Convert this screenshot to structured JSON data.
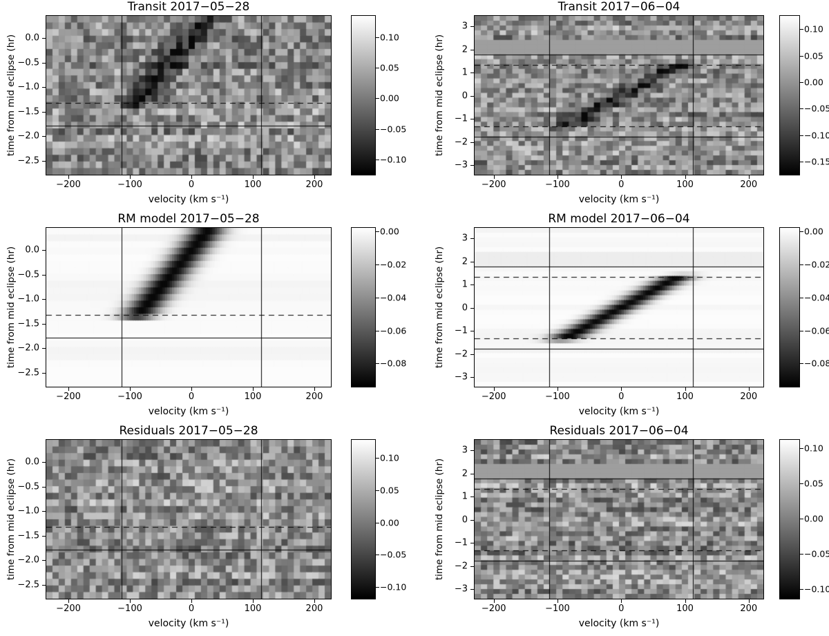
{
  "figure": {
    "background": "#ffffff",
    "text_color": "#000000",
    "line_color": "#000000"
  },
  "chart_data": {
    "type": "heatmap",
    "layout": "3 rows x 2 columns; grayscale spectroscopic time-series maps with individual colorbars",
    "panels": [
      {
        "id": "transit-2017-05-28",
        "kind": "transit",
        "col": "left",
        "title": "Transit 2017−05−28",
        "xlabel": "velocity (km s⁻¹)",
        "ylabel": "time from mid eclipse (hr)",
        "xlim": [
          -236,
          227
        ],
        "ylim": [
          -2.78,
          0.45
        ],
        "xticks": [
          {
            "v": -200,
            "label": "−200"
          },
          {
            "v": -100,
            "label": "−100"
          },
          {
            "v": 0,
            "label": "0"
          },
          {
            "v": 100,
            "label": "100"
          },
          {
            "v": 200,
            "label": "200"
          }
        ],
        "yticks": [
          {
            "v": 0.0,
            "label": "0.0"
          },
          {
            "v": -0.5,
            "label": "−0.5"
          },
          {
            "v": -1.0,
            "label": "−1.0"
          },
          {
            "v": -1.5,
            "label": "−1.5"
          },
          {
            "v": -2.0,
            "label": "−2.0"
          },
          {
            "v": -2.5,
            "label": "−2.5"
          }
        ],
        "vlines": [
          -113,
          113
        ],
        "hlines_solid": [
          -1.78
        ],
        "hlines_dashed": [
          -1.32
        ],
        "gray_bands": [],
        "trail": {
          "t0": -1.32,
          "v0": -86,
          "t1": 0.6,
          "v1": 40,
          "sigma": 27,
          "depth": 0.4,
          "ramp": 0.18
        },
        "grid": {
          "rows": 24,
          "cols": 46
        },
        "seed": 11,
        "noise_amp": 0.46,
        "colorbar": {
          "vmax": 0.135,
          "vmin": -0.125,
          "ticks": [
            {
              "v": 0.1,
              "label": "0.10"
            },
            {
              "v": 0.05,
              "label": "0.05"
            },
            {
              "v": 0.0,
              "label": "0.00"
            },
            {
              "v": -0.05,
              "label": "−0.05"
            },
            {
              "v": -0.1,
              "label": "−0.10"
            }
          ]
        }
      },
      {
        "id": "transit-2017-06-04",
        "kind": "transit",
        "col": "right",
        "title": "Transit 2017−06−04",
        "xlabel": "velocity (km s⁻¹)",
        "ylabel": "time from mid eclipse (hr)",
        "xlim": [
          -230,
          223
        ],
        "ylim": [
          -3.41,
          3.45
        ],
        "xticks": [
          {
            "v": -200,
            "label": "−200"
          },
          {
            "v": -100,
            "label": "−100"
          },
          {
            "v": 0,
            "label": "0"
          },
          {
            "v": 100,
            "label": "100"
          },
          {
            "v": 200,
            "label": "200"
          }
        ],
        "yticks": [
          {
            "v": 3,
            "label": "3"
          },
          {
            "v": 2,
            "label": "2"
          },
          {
            "v": 1,
            "label": "1"
          },
          {
            "v": 0,
            "label": "0"
          },
          {
            "v": -1,
            "label": "−1"
          },
          {
            "v": -2,
            "label": "−2"
          },
          {
            "v": -3,
            "label": "−3"
          }
        ],
        "vlines": [
          -113,
          113
        ],
        "hlines_solid": [
          1.78,
          -1.78
        ],
        "hlines_dashed": [
          1.32,
          -1.32
        ],
        "gray_bands": [
          {
            "t0": 1.8,
            "t1": 2.32,
            "value": 0.62
          }
        ],
        "trail": {
          "t0": -1.32,
          "v0": -88,
          "t1": 1.32,
          "v1": 88,
          "sigma": 25,
          "depth": 0.42,
          "ramp": 0.18
        },
        "grid": {
          "rows": 33,
          "cols": 46
        },
        "seed": 22,
        "noise_amp": 0.44,
        "colorbar": {
          "vmax": 0.125,
          "vmin": -0.175,
          "ticks": [
            {
              "v": 0.1,
              "label": "0.10"
            },
            {
              "v": 0.05,
              "label": "0.05"
            },
            {
              "v": 0.0,
              "label": "0.00"
            },
            {
              "v": -0.05,
              "label": "−0.05"
            },
            {
              "v": -0.1,
              "label": "−0.10"
            },
            {
              "v": -0.15,
              "label": "−0.15"
            }
          ]
        }
      },
      {
        "id": "rm-model-2017-05-28",
        "kind": "model",
        "col": "left",
        "title": "RM model 2017−05−28",
        "xlabel": "velocity (km s⁻¹)",
        "ylabel": "time from mid eclipse (hr)",
        "xlim": [
          -236,
          227
        ],
        "ylim": [
          -2.78,
          0.45
        ],
        "xticks": [
          {
            "v": -200,
            "label": "−200"
          },
          {
            "v": -100,
            "label": "−100"
          },
          {
            "v": 0,
            "label": "0"
          },
          {
            "v": 100,
            "label": "100"
          },
          {
            "v": 200,
            "label": "200"
          }
        ],
        "yticks": [
          {
            "v": 0.0,
            "label": "0.0"
          },
          {
            "v": -0.5,
            "label": "−0.5"
          },
          {
            "v": -1.0,
            "label": "−1.0"
          },
          {
            "v": -1.5,
            "label": "−1.5"
          },
          {
            "v": -2.0,
            "label": "−2.0"
          },
          {
            "v": -2.5,
            "label": "−2.5"
          }
        ],
        "vlines": [
          -113,
          113
        ],
        "hlines_solid": [
          -1.78
        ],
        "hlines_dashed": [
          -1.32
        ],
        "gray_bands": [],
        "trail": {
          "t0": -1.32,
          "v0": -86,
          "t1": 0.6,
          "v1": 40,
          "sigma": 28,
          "depth": 0.95,
          "ramp": 0.18
        },
        "grid": {
          "rows": 24,
          "cols": 120
        },
        "seed": 33,
        "noise_amp": 0,
        "colorbar": {
          "vmax": 0.002,
          "vmin": -0.094,
          "ticks": [
            {
              "v": 0.0,
              "label": "0.00"
            },
            {
              "v": -0.02,
              "label": "−0.02"
            },
            {
              "v": -0.04,
              "label": "−0.04"
            },
            {
              "v": -0.06,
              "label": "−0.06"
            },
            {
              "v": -0.08,
              "label": "−0.08"
            }
          ]
        }
      },
      {
        "id": "rm-model-2017-06-04",
        "kind": "model",
        "col": "right",
        "title": "RM model 2017−06−04",
        "xlabel": "velocity (km s⁻¹)",
        "ylabel": "time from mid eclipse (hr)",
        "xlim": [
          -230,
          223
        ],
        "ylim": [
          -3.41,
          3.45
        ],
        "xticks": [
          {
            "v": -200,
            "label": "−200"
          },
          {
            "v": -100,
            "label": "−100"
          },
          {
            "v": 0,
            "label": "0"
          },
          {
            "v": 100,
            "label": "100"
          },
          {
            "v": 200,
            "label": "200"
          }
        ],
        "yticks": [
          {
            "v": 3,
            "label": "3"
          },
          {
            "v": 2,
            "label": "2"
          },
          {
            "v": 1,
            "label": "1"
          },
          {
            "v": 0,
            "label": "0"
          },
          {
            "v": -1,
            "label": "−1"
          },
          {
            "v": -2,
            "label": "−2"
          },
          {
            "v": -3,
            "label": "−3"
          }
        ],
        "vlines": [
          -113,
          113
        ],
        "hlines_solid": [
          1.78,
          -1.78
        ],
        "hlines_dashed": [
          1.32,
          -1.32
        ],
        "gray_bands": [
          {
            "t0": 1.8,
            "t1": 2.32,
            "value": 0.93
          }
        ],
        "trail": {
          "t0": -1.32,
          "v0": -88,
          "t1": 1.32,
          "v1": 88,
          "sigma": 26,
          "depth": 0.95,
          "ramp": 0.18
        },
        "grid": {
          "rows": 33,
          "cols": 120
        },
        "seed": 44,
        "noise_amp": 0,
        "colorbar": {
          "vmax": 0.002,
          "vmin": -0.094,
          "ticks": [
            {
              "v": 0.0,
              "label": "0.00"
            },
            {
              "v": -0.02,
              "label": "−0.02"
            },
            {
              "v": -0.04,
              "label": "−0.04"
            },
            {
              "v": -0.06,
              "label": "−0.06"
            },
            {
              "v": -0.08,
              "label": "−0.08"
            }
          ]
        }
      },
      {
        "id": "residuals-2017-05-28",
        "kind": "residuals",
        "col": "left",
        "title": "Residuals 2017−05−28",
        "xlabel": "velocity (km s⁻¹)",
        "ylabel": "time from mid eclipse (hr)",
        "xlim": [
          -236,
          227
        ],
        "ylim": [
          -2.78,
          0.45
        ],
        "xticks": [
          {
            "v": -200,
            "label": "−200"
          },
          {
            "v": -100,
            "label": "−100"
          },
          {
            "v": 0,
            "label": "0"
          },
          {
            "v": 100,
            "label": "100"
          },
          {
            "v": 200,
            "label": "200"
          }
        ],
        "yticks": [
          {
            "v": 0.0,
            "label": "0.0"
          },
          {
            "v": -0.5,
            "label": "−0.5"
          },
          {
            "v": -1.0,
            "label": "−1.0"
          },
          {
            "v": -1.5,
            "label": "−1.5"
          },
          {
            "v": -2.0,
            "label": "−2.0"
          },
          {
            "v": -2.5,
            "label": "−2.5"
          }
        ],
        "vlines": [
          -113,
          113
        ],
        "hlines_solid": [
          -1.78
        ],
        "hlines_dashed": [
          -1.32
        ],
        "gray_bands": [],
        "trail": null,
        "grid": {
          "rows": 24,
          "cols": 46
        },
        "seed": 55,
        "noise_amp": 0.46,
        "colorbar": {
          "vmax": 0.128,
          "vmin": -0.118,
          "ticks": [
            {
              "v": 0.1,
              "label": "0.10"
            },
            {
              "v": 0.05,
              "label": "0.05"
            },
            {
              "v": 0.0,
              "label": "0.00"
            },
            {
              "v": -0.05,
              "label": "−0.05"
            },
            {
              "v": -0.1,
              "label": "−0.10"
            }
          ]
        }
      },
      {
        "id": "residuals-2017-06-04",
        "kind": "residuals",
        "col": "right",
        "title": "Residuals 2017−06−04",
        "xlabel": "velocity (km s⁻¹)",
        "ylabel": "time from mid eclipse (hr)",
        "xlim": [
          -230,
          223
        ],
        "ylim": [
          -3.41,
          3.45
        ],
        "xticks": [
          {
            "v": -200,
            "label": "−200"
          },
          {
            "v": -100,
            "label": "−100"
          },
          {
            "v": 0,
            "label": "0"
          },
          {
            "v": 100,
            "label": "100"
          },
          {
            "v": 200,
            "label": "200"
          }
        ],
        "yticks": [
          {
            "v": 3,
            "label": "3"
          },
          {
            "v": 2,
            "label": "2"
          },
          {
            "v": 1,
            "label": "1"
          },
          {
            "v": 0,
            "label": "0"
          },
          {
            "v": -1,
            "label": "−1"
          },
          {
            "v": -2,
            "label": "−2"
          },
          {
            "v": -3,
            "label": "−3"
          }
        ],
        "vlines": [
          -113,
          113
        ],
        "hlines_solid": [
          1.78,
          -1.78
        ],
        "hlines_dashed": [
          1.32,
          -1.32
        ],
        "gray_bands": [
          {
            "t0": 1.8,
            "t1": 2.32,
            "value": 0.62
          }
        ],
        "trail": null,
        "grid": {
          "rows": 33,
          "cols": 46
        },
        "seed": 66,
        "noise_amp": 0.46,
        "colorbar": {
          "vmax": 0.112,
          "vmin": -0.114,
          "ticks": [
            {
              "v": 0.1,
              "label": "0.10"
            },
            {
              "v": 0.05,
              "label": "0.05"
            },
            {
              "v": 0.0,
              "label": "0.00"
            },
            {
              "v": -0.05,
              "label": "−0.05"
            },
            {
              "v": -0.1,
              "label": "−0.10"
            }
          ]
        }
      }
    ]
  }
}
